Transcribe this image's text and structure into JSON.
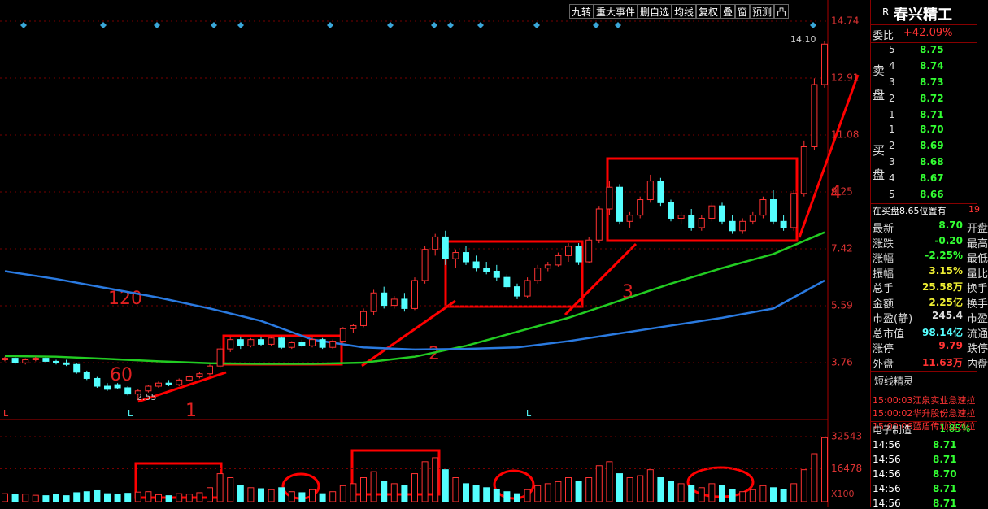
{
  "chart": {
    "yticks": [
      3.76,
      5.59,
      7.42,
      9.25,
      11.08,
      12.91,
      14.74
    ],
    "ylim": [
      2.3,
      15.1
    ],
    "vticks": [
      32543,
      16478
    ],
    "vlim": [
      0,
      36000
    ],
    "vunit": "X100",
    "toolbar": [
      "九转",
      "重大事件",
      "删自选",
      "均线",
      "复权",
      "叠",
      "窗",
      "预测",
      "凸"
    ],
    "annotations": {
      "ma120": "120",
      "ma60": "60",
      "n1": "1",
      "n2": "2",
      "n3": "3",
      "n4": "4"
    },
    "low_label": "2.55",
    "high_label": "14.10",
    "l_marks": [
      "L",
      "L",
      "L"
    ],
    "candles": [
      [
        3.85,
        3.95,
        3.8,
        3.9
      ],
      [
        3.9,
        3.95,
        3.7,
        3.75
      ],
      [
        3.75,
        3.9,
        3.7,
        3.85
      ],
      [
        3.85,
        3.95,
        3.8,
        3.9
      ],
      [
        3.9,
        3.95,
        3.75,
        3.8
      ],
      [
        3.8,
        3.85,
        3.7,
        3.75
      ],
      [
        3.75,
        3.85,
        3.65,
        3.7
      ],
      [
        3.7,
        3.75,
        3.4,
        3.45
      ],
      [
        3.45,
        3.5,
        3.2,
        3.25
      ],
      [
        3.25,
        3.3,
        2.95,
        3.0
      ],
      [
        3.0,
        3.1,
        2.85,
        2.9
      ],
      [
        3.05,
        3.1,
        2.9,
        2.95
      ],
      [
        2.95,
        3.0,
        2.7,
        2.75
      ],
      [
        2.75,
        2.9,
        2.55,
        2.85
      ],
      [
        2.85,
        3.05,
        2.8,
        3.0
      ],
      [
        3.0,
        3.15,
        2.95,
        3.1
      ],
      [
        3.1,
        3.2,
        3.0,
        3.05
      ],
      [
        3.05,
        3.25,
        3.0,
        3.2
      ],
      [
        3.2,
        3.35,
        3.15,
        3.3
      ],
      [
        3.3,
        3.45,
        3.25,
        3.4
      ],
      [
        3.4,
        3.7,
        3.35,
        3.65
      ],
      [
        3.65,
        4.3,
        3.6,
        4.2
      ],
      [
        4.2,
        4.6,
        4.1,
        4.5
      ],
      [
        4.5,
        4.6,
        4.2,
        4.3
      ],
      [
        4.3,
        4.55,
        4.25,
        4.5
      ],
      [
        4.5,
        4.6,
        4.3,
        4.35
      ],
      [
        4.35,
        4.6,
        4.3,
        4.55
      ],
      [
        4.55,
        4.6,
        4.2,
        4.25
      ],
      [
        4.25,
        4.45,
        4.2,
        4.4
      ],
      [
        4.4,
        4.5,
        4.25,
        4.3
      ],
      [
        4.3,
        4.6,
        4.25,
        4.5
      ],
      [
        4.5,
        4.55,
        4.2,
        4.25
      ],
      [
        4.25,
        4.5,
        4.2,
        4.45
      ],
      [
        4.45,
        4.9,
        4.4,
        4.85
      ],
      [
        4.85,
        5.0,
        4.7,
        4.95
      ],
      [
        4.95,
        5.5,
        4.9,
        5.4
      ],
      [
        5.4,
        6.1,
        5.3,
        6.0
      ],
      [
        6.0,
        6.2,
        5.5,
        5.6
      ],
      [
        5.6,
        5.9,
        5.5,
        5.8
      ],
      [
        5.8,
        6.0,
        5.4,
        5.5
      ],
      [
        5.5,
        6.5,
        5.45,
        6.4
      ],
      [
        6.4,
        7.5,
        6.3,
        7.4
      ],
      [
        7.4,
        7.9,
        7.2,
        7.8
      ],
      [
        7.8,
        8.0,
        6.9,
        7.1
      ],
      [
        7.1,
        7.4,
        6.8,
        7.3
      ],
      [
        7.3,
        7.5,
        6.9,
        7.0
      ],
      [
        7.0,
        7.2,
        6.7,
        6.8
      ],
      [
        6.8,
        7.0,
        6.6,
        6.7
      ],
      [
        6.7,
        6.9,
        6.4,
        6.5
      ],
      [
        6.5,
        6.6,
        6.1,
        6.2
      ],
      [
        6.2,
        6.3,
        5.8,
        5.9
      ],
      [
        5.9,
        6.5,
        5.85,
        6.4
      ],
      [
        6.4,
        6.9,
        6.3,
        6.8
      ],
      [
        6.8,
        7.0,
        6.7,
        6.9
      ],
      [
        6.9,
        7.3,
        6.85,
        7.2
      ],
      [
        7.2,
        7.6,
        7.0,
        7.5
      ],
      [
        7.5,
        7.6,
        6.9,
        7.0
      ],
      [
        7.0,
        7.8,
        6.95,
        7.7
      ],
      [
        7.7,
        8.8,
        7.6,
        8.7
      ],
      [
        8.7,
        9.6,
        8.5,
        9.4
      ],
      [
        9.4,
        9.5,
        8.2,
        8.3
      ],
      [
        8.3,
        8.6,
        8.1,
        8.5
      ],
      [
        8.5,
        9.1,
        8.4,
        9.0
      ],
      [
        9.0,
        9.8,
        8.9,
        9.6
      ],
      [
        9.6,
        9.7,
        8.8,
        8.9
      ],
      [
        8.9,
        9.0,
        8.3,
        8.4
      ],
      [
        8.4,
        8.6,
        8.2,
        8.5
      ],
      [
        8.5,
        8.7,
        8.0,
        8.1
      ],
      [
        8.1,
        8.5,
        8.0,
        8.4
      ],
      [
        8.4,
        8.9,
        8.3,
        8.8
      ],
      [
        8.8,
        8.9,
        8.2,
        8.3
      ],
      [
        8.3,
        8.5,
        7.9,
        8.0
      ],
      [
        8.0,
        8.4,
        7.9,
        8.3
      ],
      [
        8.3,
        8.6,
        8.2,
        8.5
      ],
      [
        8.5,
        9.1,
        8.4,
        9.0
      ],
      [
        9.0,
        9.3,
        8.2,
        8.3
      ],
      [
        8.3,
        8.5,
        8.0,
        8.1
      ],
      [
        8.1,
        9.3,
        8.0,
        9.2
      ],
      [
        9.2,
        10.9,
        9.1,
        10.7
      ],
      [
        10.7,
        12.9,
        10.6,
        12.7
      ],
      [
        12.7,
        14.1,
        12.6,
        14.0
      ]
    ],
    "volume": [
      4000,
      3500,
      3800,
      3200,
      3000,
      3500,
      3000,
      4500,
      5000,
      5500,
      4000,
      3800,
      4200,
      4800,
      5000,
      3500,
      3000,
      4000,
      3800,
      4500,
      7000,
      14000,
      12000,
      8000,
      7000,
      6500,
      6000,
      7000,
      5000,
      4500,
      6000,
      4000,
      5000,
      8000,
      9000,
      12000,
      15000,
      10000,
      9000,
      8000,
      14000,
      20000,
      22000,
      16000,
      12000,
      9000,
      8000,
      7000,
      6000,
      5000,
      4000,
      6000,
      8000,
      9000,
      10000,
      12000,
      10000,
      12000,
      18000,
      20000,
      14000,
      12000,
      13000,
      16000,
      12000,
      10000,
      9000,
      8000,
      7000,
      9000,
      8000,
      6000,
      5000,
      6000,
      8000,
      7000,
      6000,
      9000,
      16000,
      24000,
      32000
    ],
    "ma": [
      {
        "color": "#22cc22",
        "x": [
          0,
          5,
          10,
          15,
          20,
          25,
          30,
          35,
          40,
          45,
          50,
          55,
          60,
          65,
          70,
          75,
          80
        ],
        "values": [
          3.97,
          3.95,
          3.88,
          3.8,
          3.74,
          3.72,
          3.72,
          3.76,
          3.95,
          4.3,
          4.75,
          5.2,
          5.75,
          6.3,
          6.8,
          7.25,
          7.95
        ]
      },
      {
        "color": "#2a7ae0",
        "x": [
          0,
          5,
          10,
          15,
          20,
          25,
          30,
          35,
          40,
          45,
          50,
          55,
          60,
          65,
          70,
          75,
          80
        ],
        "values": [
          6.7,
          6.45,
          6.15,
          5.85,
          5.5,
          5.1,
          4.5,
          4.25,
          4.18,
          4.2,
          4.25,
          4.45,
          4.7,
          4.95,
          5.2,
          5.5,
          6.4
        ]
      }
    ]
  },
  "panel": {
    "code": "R",
    "name": "春兴精工",
    "weibi_label": "委比",
    "weibi": "+42.09%",
    "sell_label": [
      "卖",
      "盘"
    ],
    "sell": [
      [
        "5",
        "8.75"
      ],
      [
        "4",
        "8.74"
      ],
      [
        "3",
        "8.73"
      ],
      [
        "2",
        "8.72"
      ],
      [
        "1",
        "8.71"
      ]
    ],
    "buy_label": [
      "买",
      "盘"
    ],
    "buy": [
      [
        "1",
        "8.70"
      ],
      [
        "2",
        "8.69"
      ],
      [
        "3",
        "8.68"
      ],
      [
        "4",
        "8.67"
      ],
      [
        "5",
        "8.66"
      ]
    ],
    "note": "在买盘8.65位置有",
    "note_tail": "19",
    "stats": [
      {
        "label": "最新",
        "value": "8.70",
        "next": "开盘",
        "color": "#3f3"
      },
      {
        "label": "涨跌",
        "value": "-0.20",
        "next": "最高",
        "color": "#3f3"
      },
      {
        "label": "涨幅",
        "value": "-2.25%",
        "next": "最低",
        "color": "#3f3"
      },
      {
        "label": "振幅",
        "value": "3.15%",
        "next": "量比",
        "color": "#ee3"
      },
      {
        "label": "总手",
        "value": "25.58万",
        "next": "换手",
        "color": "#ee3"
      },
      {
        "label": "金额",
        "value": "2.25亿",
        "next": "换手",
        "color": "#ee3"
      },
      {
        "label": "市盈(静)",
        "value": "245.4",
        "next": "市盈",
        "color": "#ddd"
      },
      {
        "label": "总市值",
        "value": "98.14亿",
        "next": "流通",
        "color": "#5ff"
      },
      {
        "label": "涨停",
        "value": "9.79",
        "next": "跌停",
        "color": "#f33"
      },
      {
        "label": "外盘",
        "value": "11.63万",
        "next": "内盘",
        "color": "#f33"
      }
    ],
    "sprite_title": "短线精灵",
    "alerts": [
      "15:00:03江泉实业急速拉",
      "15:00:02华升股份急速拉",
      "15:00:06蓝盾传动猛烈拉"
    ],
    "sector": {
      "name": "电子制造",
      "change": "-1.85%"
    },
    "ticks": [
      [
        "14:56",
        "8.71"
      ],
      [
        "14:56",
        "8.71"
      ],
      [
        "14:56",
        "8.70"
      ],
      [
        "14:56",
        "8.71"
      ],
      [
        "14:56",
        "8.71"
      ]
    ]
  }
}
